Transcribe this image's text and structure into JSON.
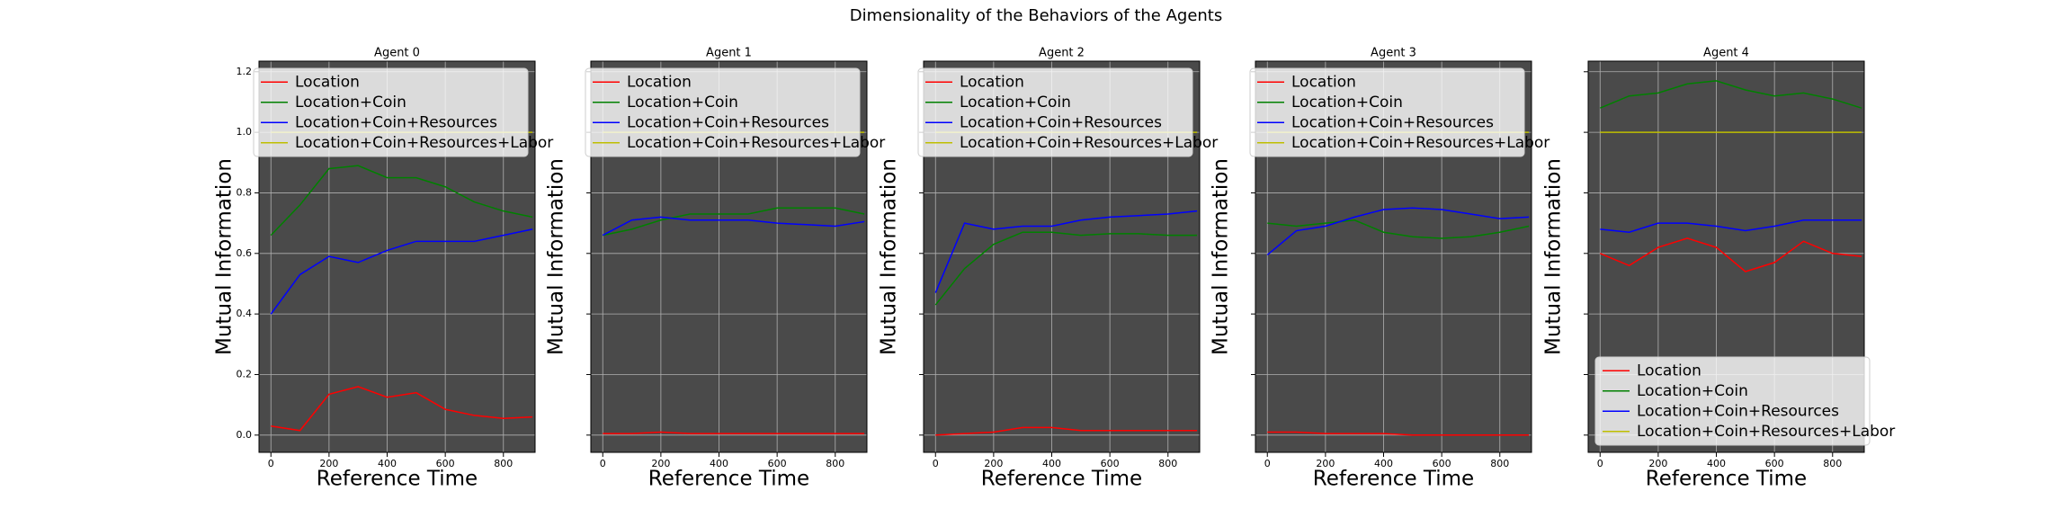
{
  "title": "Dimensionality of the Behaviors of the Agents",
  "chart_data": [
    {
      "type": "line",
      "title": "Agent 0",
      "xlabel": "Reference Time",
      "ylabel": "Mutual Information",
      "x": [
        0,
        100,
        200,
        300,
        400,
        500,
        600,
        700,
        800,
        900
      ],
      "series": [
        {
          "name": "Location",
          "color": "#ff0000",
          "values": [
            0.03,
            0.015,
            0.135,
            0.16,
            0.125,
            0.14,
            0.085,
            0.065,
            0.055,
            0.06
          ]
        },
        {
          "name": "Location+Coin",
          "color": "#008000",
          "values": [
            0.66,
            0.76,
            0.88,
            0.89,
            0.85,
            0.85,
            0.82,
            0.77,
            0.74,
            0.72
          ]
        },
        {
          "name": "Location+Coin+Resources",
          "color": "#0000ff",
          "values": [
            0.4,
            0.53,
            0.59,
            0.57,
            0.61,
            0.64,
            0.64,
            0.64,
            0.66,
            0.68
          ]
        },
        {
          "name": "Location+Coin+Resources+Labor",
          "color": "#bfbf00",
          "values": [
            1.0,
            1.0,
            1.0,
            1.0,
            1.0,
            1.0,
            1.0,
            1.0,
            1.0,
            1.0
          ]
        }
      ],
      "xlim": [
        -41,
        909
      ],
      "ylim": [
        -0.057,
        1.235
      ],
      "xticks": [
        0,
        200,
        400,
        600,
        800
      ],
      "yticks": [
        {
          "value": 0,
          "label": "0.0"
        },
        0.2,
        0.4,
        0.6,
        0.8,
        {
          "value": 1,
          "label": "1.0"
        },
        1.2
      ],
      "show_ytick_labels": true,
      "grid": true,
      "legend": "upper left",
      "background": "#4a4a4a"
    },
    {
      "type": "line",
      "title": "Agent 1",
      "xlabel": "Reference Time",
      "ylabel": "Mutual Information",
      "x": [
        0,
        100,
        200,
        300,
        400,
        500,
        600,
        700,
        800,
        900
      ],
      "series": [
        {
          "name": "Location",
          "color": "#ff0000",
          "values": [
            0.005,
            0.005,
            0.01,
            0.005,
            0.005,
            0.005,
            0.005,
            0.005,
            0.005,
            0.005
          ]
        },
        {
          "name": "Location+Coin",
          "color": "#008000",
          "values": [
            0.66,
            0.68,
            0.71,
            0.73,
            0.73,
            0.73,
            0.75,
            0.75,
            0.75,
            0.73
          ]
        },
        {
          "name": "Location+Coin+Resources",
          "color": "#0000ff",
          "values": [
            0.66,
            0.71,
            0.72,
            0.71,
            0.71,
            0.71,
            0.7,
            0.695,
            0.69,
            0.705
          ]
        },
        {
          "name": "Location+Coin+Resources+Labor",
          "color": "#bfbf00",
          "values": [
            1.0,
            1.0,
            1.0,
            1.0,
            1.0,
            1.0,
            1.0,
            1.0,
            1.0,
            1.0
          ]
        }
      ],
      "xlim": [
        -41,
        909
      ],
      "ylim": [
        -0.057,
        1.235
      ],
      "xticks": [
        0,
        200,
        400,
        600,
        800
      ],
      "yticks": [
        {
          "value": 0,
          "label": "0.0"
        },
        0.2,
        0.4,
        0.6,
        0.8,
        {
          "value": 1,
          "label": "1.0"
        },
        1.2
      ],
      "show_ytick_labels": false,
      "grid": true,
      "legend": "upper left",
      "background": "#4a4a4a"
    },
    {
      "type": "line",
      "title": "Agent 2",
      "xlabel": "Reference Time",
      "ylabel": "Mutual Information",
      "x": [
        0,
        100,
        200,
        300,
        400,
        500,
        600,
        700,
        800,
        900
      ],
      "series": [
        {
          "name": "Location",
          "color": "#ff0000",
          "values": [
            0.0,
            0.005,
            0.01,
            0.025,
            0.025,
            0.015,
            0.015,
            0.015,
            0.015,
            0.015
          ]
        },
        {
          "name": "Location+Coin",
          "color": "#008000",
          "values": [
            0.43,
            0.55,
            0.63,
            0.67,
            0.67,
            0.66,
            0.665,
            0.665,
            0.66,
            0.66
          ]
        },
        {
          "name": "Location+Coin+Resources",
          "color": "#0000ff",
          "values": [
            0.47,
            0.7,
            0.68,
            0.69,
            0.69,
            0.71,
            0.72,
            0.725,
            0.73,
            0.74
          ]
        },
        {
          "name": "Location+Coin+Resources+Labor",
          "color": "#bfbf00",
          "values": [
            1.0,
            1.0,
            1.0,
            1.0,
            1.0,
            1.0,
            1.0,
            1.0,
            1.0,
            1.0
          ]
        }
      ],
      "xlim": [
        -41,
        909
      ],
      "ylim": [
        -0.057,
        1.235
      ],
      "xticks": [
        0,
        200,
        400,
        600,
        800
      ],
      "yticks": [
        {
          "value": 0,
          "label": "0.0"
        },
        0.2,
        0.4,
        0.6,
        0.8,
        {
          "value": 1,
          "label": "1.0"
        },
        1.2
      ],
      "show_ytick_labels": false,
      "grid": true,
      "legend": "upper left",
      "background": "#4a4a4a"
    },
    {
      "type": "line",
      "title": "Agent 3",
      "xlabel": "Reference Time",
      "ylabel": "Mutual Information",
      "x": [
        0,
        100,
        200,
        300,
        400,
        500,
        600,
        700,
        800,
        900
      ],
      "series": [
        {
          "name": "Location",
          "color": "#ff0000",
          "values": [
            0.01,
            0.01,
            0.005,
            0.005,
            0.005,
            0.0,
            0.0,
            0.0,
            0.0,
            0.0
          ]
        },
        {
          "name": "Location+Coin",
          "color": "#008000",
          "values": [
            0.7,
            0.69,
            0.7,
            0.71,
            0.67,
            0.655,
            0.65,
            0.655,
            0.67,
            0.69
          ]
        },
        {
          "name": "Location+Coin+Resources",
          "color": "#0000ff",
          "values": [
            0.595,
            0.675,
            0.69,
            0.72,
            0.745,
            0.75,
            0.745,
            0.73,
            0.715,
            0.72
          ]
        },
        {
          "name": "Location+Coin+Resources+Labor",
          "color": "#bfbf00",
          "values": [
            1.0,
            1.0,
            1.0,
            1.0,
            1.0,
            1.0,
            1.0,
            1.0,
            1.0,
            1.0
          ]
        }
      ],
      "xlim": [
        -41,
        909
      ],
      "ylim": [
        -0.057,
        1.235
      ],
      "xticks": [
        0,
        200,
        400,
        600,
        800
      ],
      "yticks": [
        {
          "value": 0,
          "label": "0.0"
        },
        0.2,
        0.4,
        0.6,
        0.8,
        {
          "value": 1,
          "label": "1.0"
        },
        1.2
      ],
      "show_ytick_labels": false,
      "grid": true,
      "legend": "upper left",
      "background": "#4a4a4a"
    },
    {
      "type": "line",
      "title": "Agent 4",
      "xlabel": "Reference Time",
      "ylabel": "Mutual Information",
      "x": [
        0,
        100,
        200,
        300,
        400,
        500,
        600,
        700,
        800,
        900
      ],
      "series": [
        {
          "name": "Location",
          "color": "#ff0000",
          "values": [
            0.6,
            0.56,
            0.62,
            0.65,
            0.62,
            0.54,
            0.57,
            0.64,
            0.6,
            0.59
          ]
        },
        {
          "name": "Location+Coin",
          "color": "#008000",
          "values": [
            1.08,
            1.12,
            1.13,
            1.16,
            1.17,
            1.14,
            1.12,
            1.13,
            1.11,
            1.08
          ]
        },
        {
          "name": "Location+Coin+Resources",
          "color": "#0000ff",
          "values": [
            0.68,
            0.67,
            0.7,
            0.7,
            0.69,
            0.675,
            0.69,
            0.71,
            0.71,
            0.71
          ]
        },
        {
          "name": "Location+Coin+Resources+Labor",
          "color": "#bfbf00",
          "values": [
            1.0,
            1.0,
            1.0,
            1.0,
            1.0,
            1.0,
            1.0,
            1.0,
            1.0,
            1.0
          ]
        }
      ],
      "xlim": [
        -41,
        909
      ],
      "ylim": [
        -0.057,
        1.235
      ],
      "xticks": [
        0,
        200,
        400,
        600,
        800
      ],
      "yticks": [
        {
          "value": 0,
          "label": "0.0"
        },
        0.2,
        0.4,
        0.6,
        0.8,
        {
          "value": 1,
          "label": "1.0"
        },
        1.2
      ],
      "show_ytick_labels": false,
      "grid": true,
      "legend": "lower right",
      "background": "#4a4a4a"
    }
  ]
}
